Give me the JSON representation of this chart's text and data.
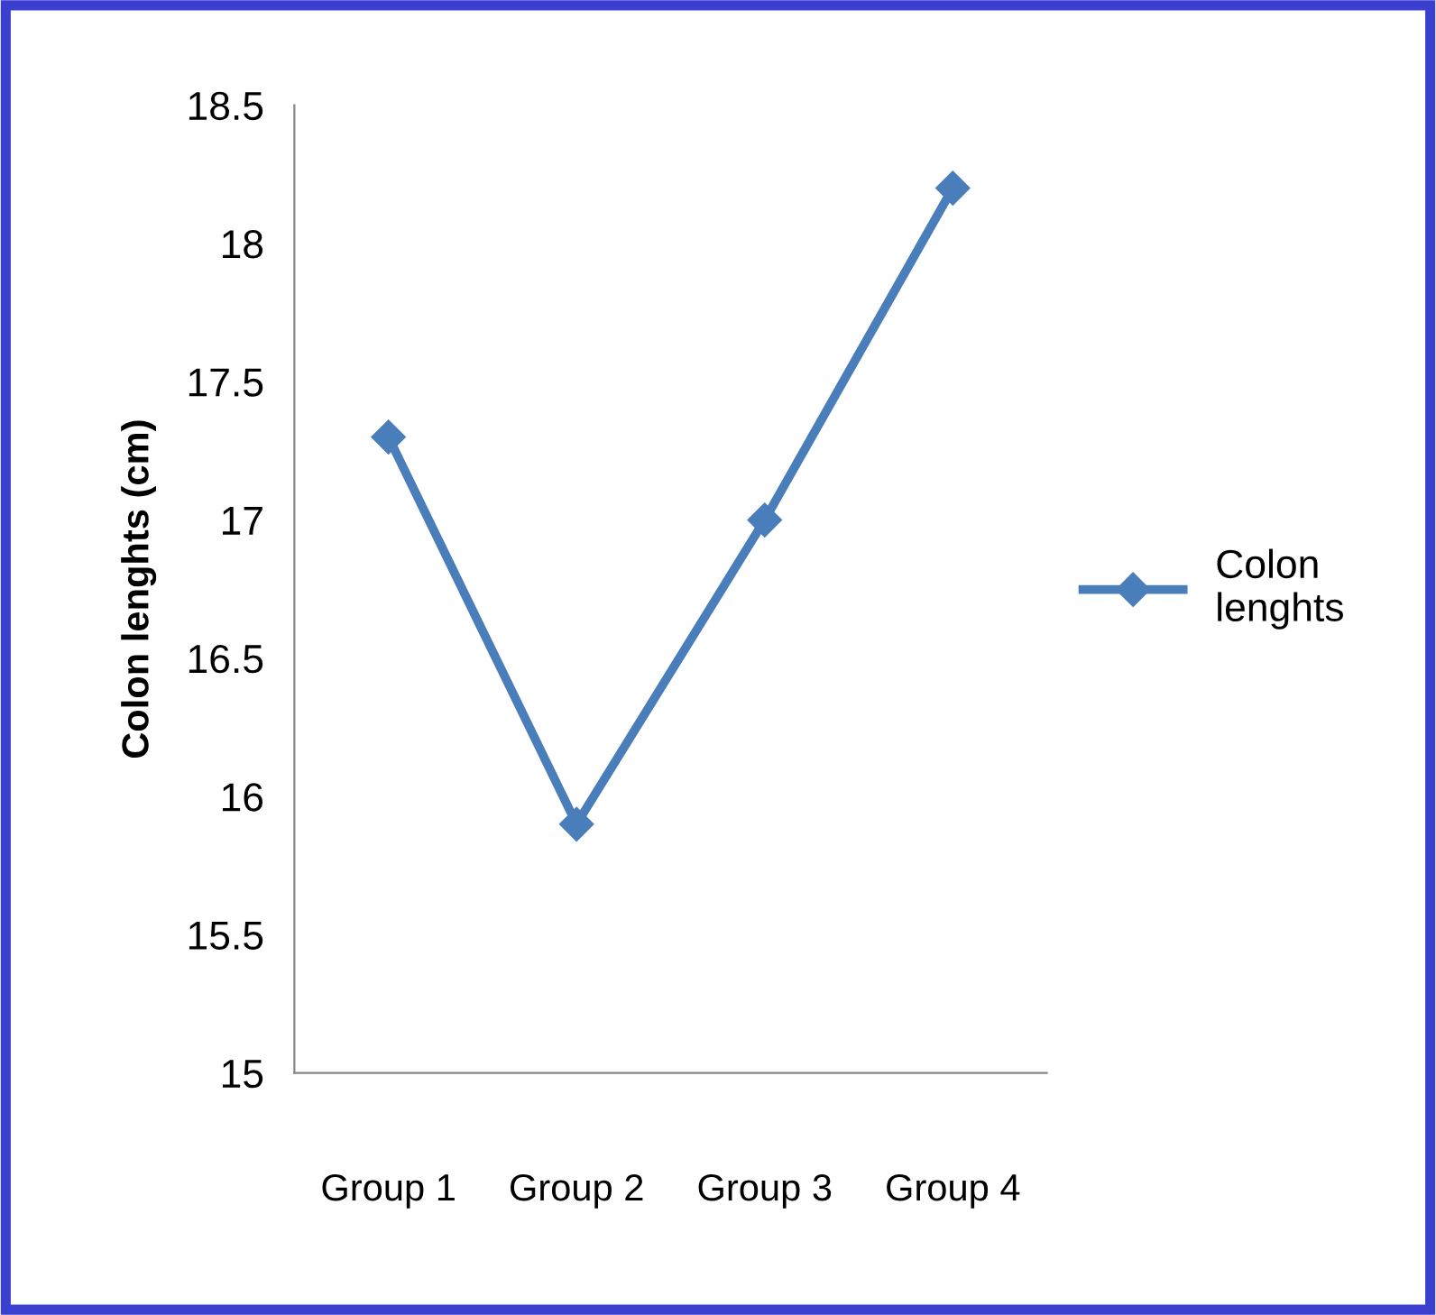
{
  "chart_data": {
    "type": "line",
    "ylabel": "Colon lenghts (cm)",
    "categories": [
      "Group 1",
      "Group 2",
      "Group 3",
      "Group 4"
    ],
    "series": [
      {
        "name": "Colon\nlenghts",
        "color": "#4a7ebb",
        "values": [
          17.3,
          15.9,
          17.0,
          18.2
        ]
      }
    ],
    "ylim": [
      15,
      18.5
    ],
    "yticks": [
      15,
      15.5,
      16,
      16.5,
      17,
      17.5,
      18,
      18.5
    ],
    "grid": false,
    "legend": "right",
    "marker": "diamond",
    "line_style": "solid"
  }
}
